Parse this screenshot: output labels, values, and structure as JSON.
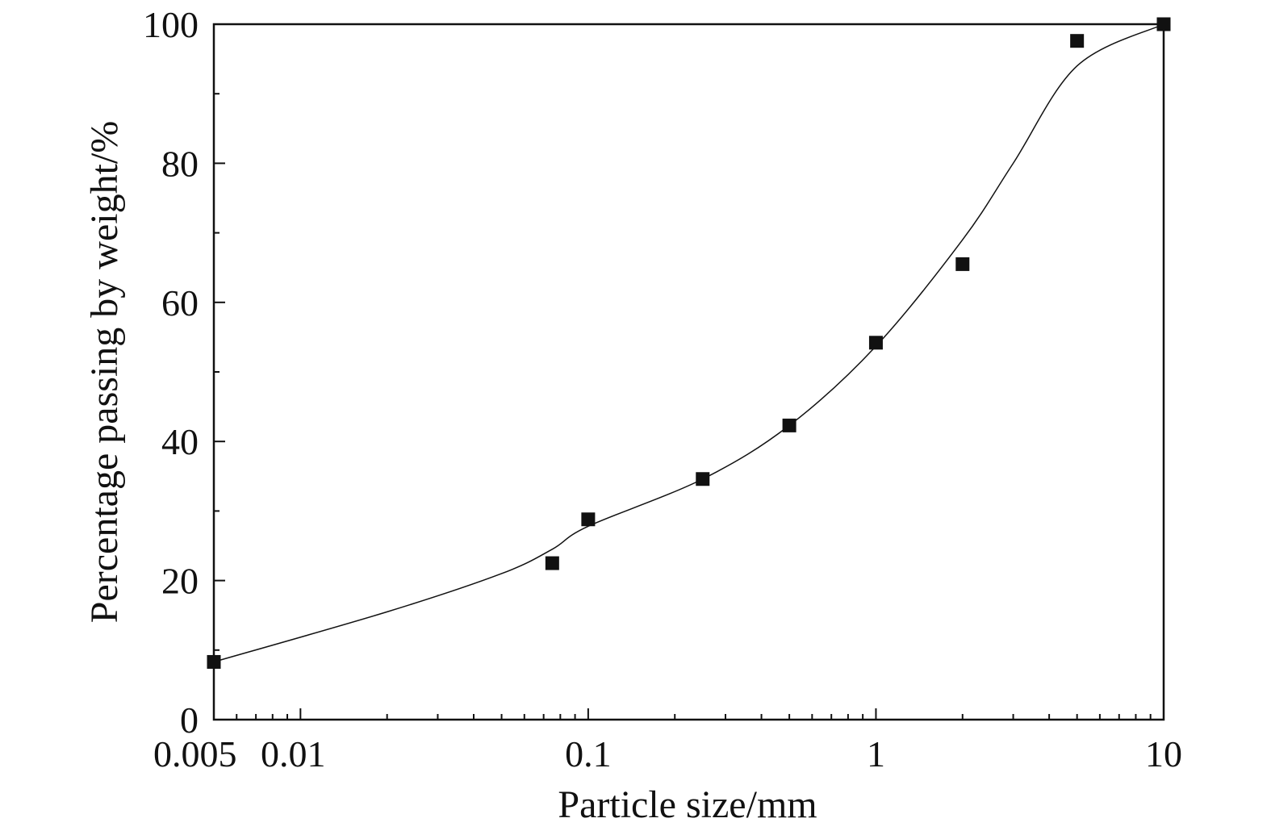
{
  "chart_data": {
    "type": "scatter",
    "title": "",
    "xlabel": "Particle size/mm",
    "ylabel": "Percentage passing by weight/%",
    "x_scale": "log",
    "xlim": [
      0.005,
      10
    ],
    "ylim": [
      0,
      100
    ],
    "x_ticks": [
      {
        "value": 0.005,
        "label": "0.005"
      },
      {
        "value": 0.01,
        "label": "0.01"
      },
      {
        "value": 0.1,
        "label": "0.1"
      },
      {
        "value": 1,
        "label": "1"
      },
      {
        "value": 10,
        "label": "10"
      }
    ],
    "y_ticks": [
      {
        "value": 0,
        "label": "0"
      },
      {
        "value": 20,
        "label": "20"
      },
      {
        "value": 40,
        "label": "40"
      },
      {
        "value": 60,
        "label": "60"
      },
      {
        "value": 80,
        "label": "80"
      },
      {
        "value": 100,
        "label": "100"
      }
    ],
    "grid": false,
    "legend": "none",
    "series": [
      {
        "marker": "square",
        "color": "#111111",
        "points": [
          {
            "x": 0.005,
            "y": 8.3
          },
          {
            "x": 0.075,
            "y": 22.5
          },
          {
            "x": 0.1,
            "y": 28.8
          },
          {
            "x": 0.25,
            "y": 34.6
          },
          {
            "x": 0.5,
            "y": 42.3
          },
          {
            "x": 1,
            "y": 54.2
          },
          {
            "x": 2,
            "y": 65.5
          },
          {
            "x": 5,
            "y": 97.6
          },
          {
            "x": 10,
            "y": 100
          }
        ]
      }
    ],
    "fitted_curve": {
      "style": "thin line",
      "color": "#111111",
      "points": [
        {
          "x": 0.005,
          "y": 8.3
        },
        {
          "x": 0.02,
          "y": 15.5
        },
        {
          "x": 0.05,
          "y": 21.0
        },
        {
          "x": 0.075,
          "y": 24.5
        },
        {
          "x": 0.1,
          "y": 27.8
        },
        {
          "x": 0.25,
          "y": 34.6
        },
        {
          "x": 0.5,
          "y": 42.3
        },
        {
          "x": 1,
          "y": 53.7
        },
        {
          "x": 2,
          "y": 69.0
        },
        {
          "x": 3,
          "y": 80.0
        },
        {
          "x": 5,
          "y": 94.0
        },
        {
          "x": 10,
          "y": 100
        }
      ]
    }
  }
}
